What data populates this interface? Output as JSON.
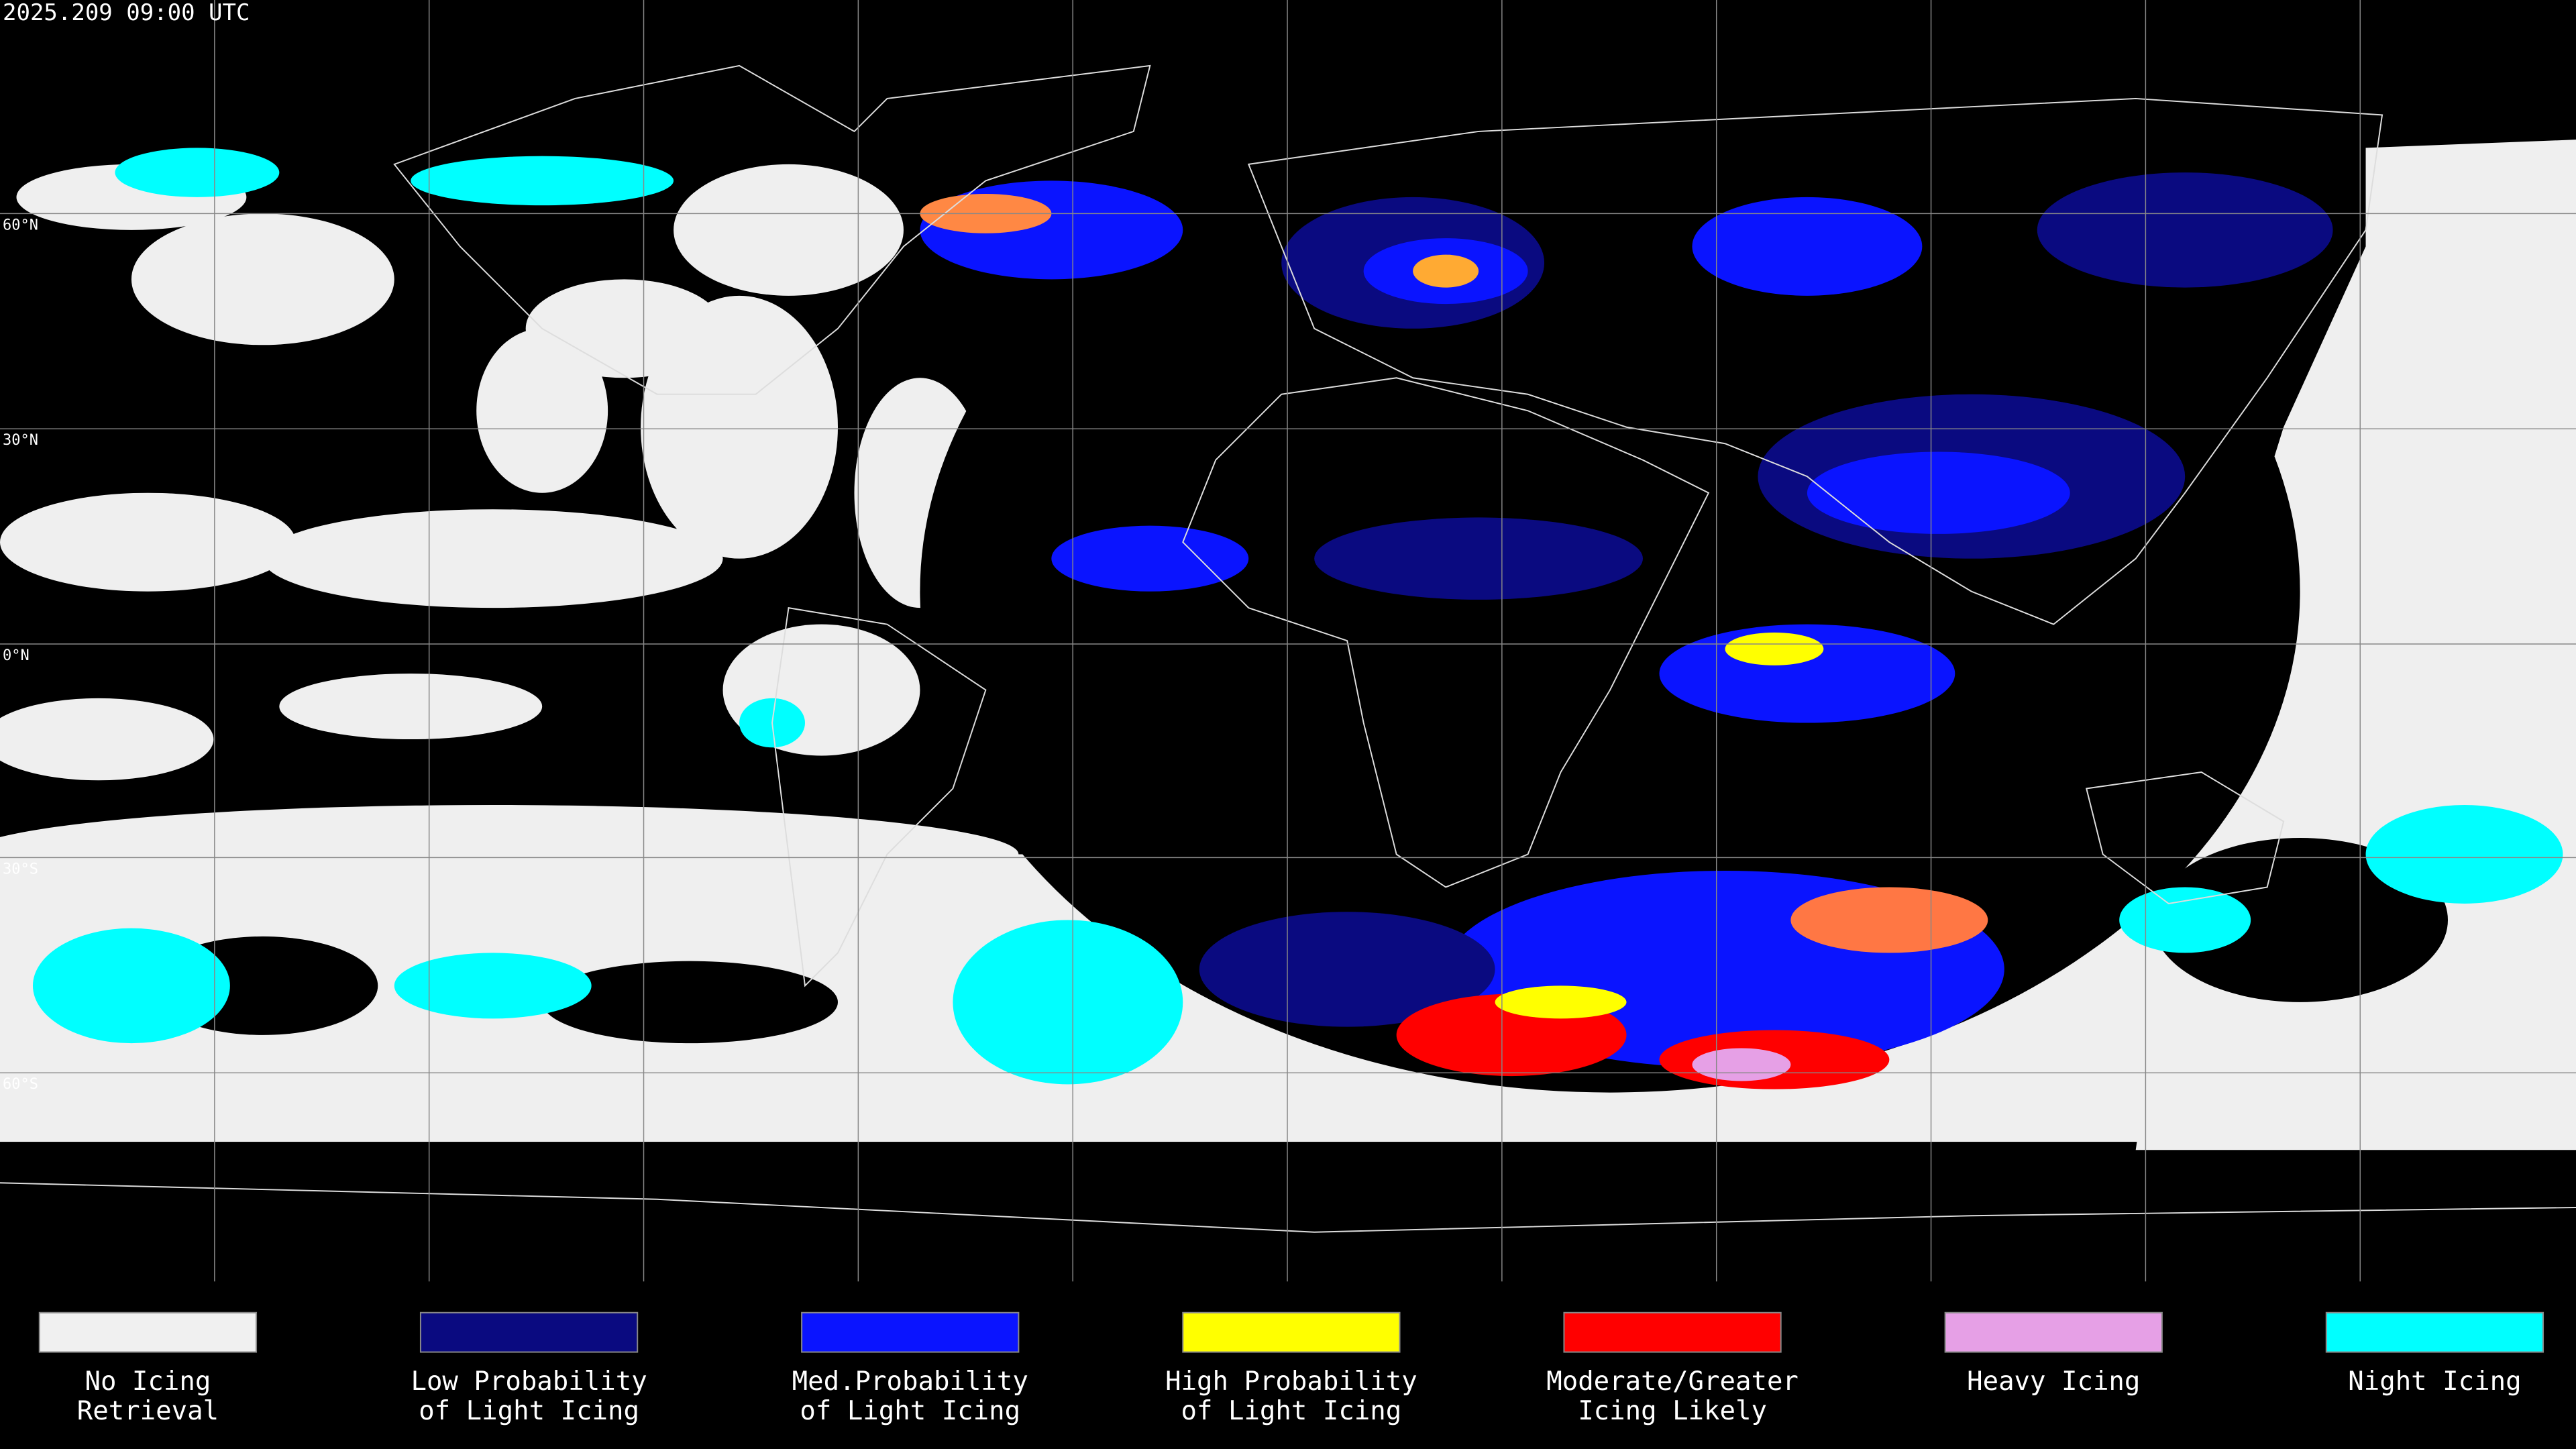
{
  "header": {
    "timestamp": "2025.209 09:00 UTC"
  },
  "map": {
    "latitude_labels": [
      "60°N",
      "30°N",
      "0°N",
      "30°S",
      "60°S"
    ]
  },
  "legend": {
    "items": [
      {
        "lines": [
          "No Icing",
          "Retrieval"
        ],
        "color": "#f0f0f0"
      },
      {
        "lines": [
          "Low Probability",
          "of Light Icing"
        ],
        "color": "#0a0a80"
      },
      {
        "lines": [
          "Med.Probability",
          "of Light Icing"
        ],
        "color": "#0a14ff"
      },
      {
        "lines": [
          "High Probability",
          "of Light Icing"
        ],
        "color": "#ffff00"
      },
      {
        "lines": [
          "Moderate/Greater",
          "Icing Likely"
        ],
        "color": "#ff0000"
      },
      {
        "lines": [
          "Heavy Icing"
        ],
        "color": "#e6a0e6"
      },
      {
        "lines": [
          "Night Icing"
        ],
        "color": "#00ffff"
      }
    ]
  }
}
